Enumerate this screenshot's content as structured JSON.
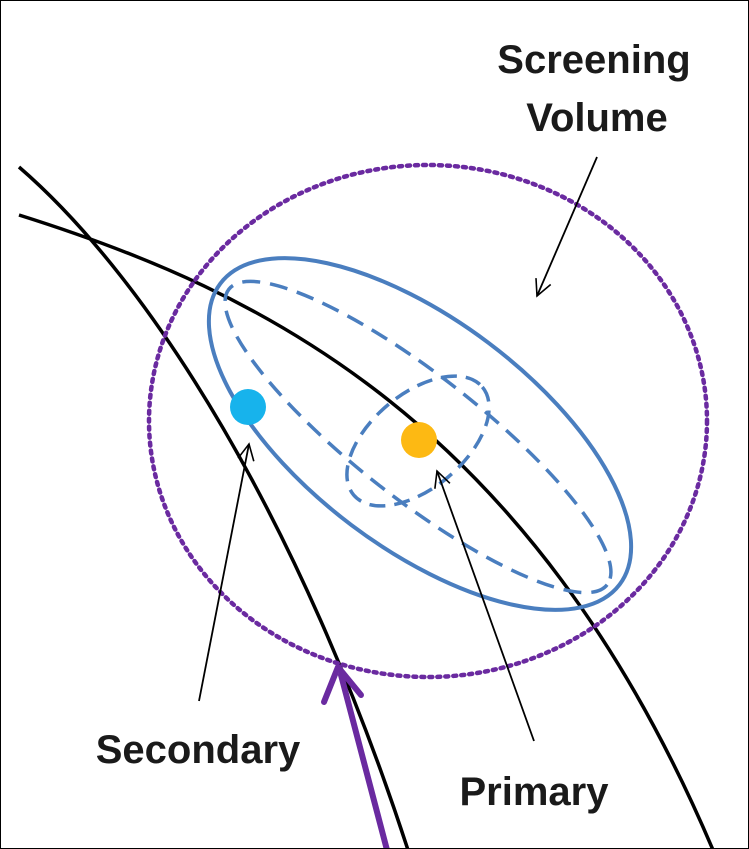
{
  "labels": {
    "screening_volume_line1": "Screening",
    "screening_volume_line2": "Volume",
    "secondary": "Secondary",
    "primary": "Primary"
  },
  "colors": {
    "orbit": "#000000",
    "screening_volume": "#6a2aa0",
    "ellipsoid": "#4a7ebf",
    "secondary_object": "#17b3ec",
    "primary_object": "#fdb913",
    "velocity_arrow": "#6a2aa0",
    "pointer_arrow": "#000000"
  }
}
